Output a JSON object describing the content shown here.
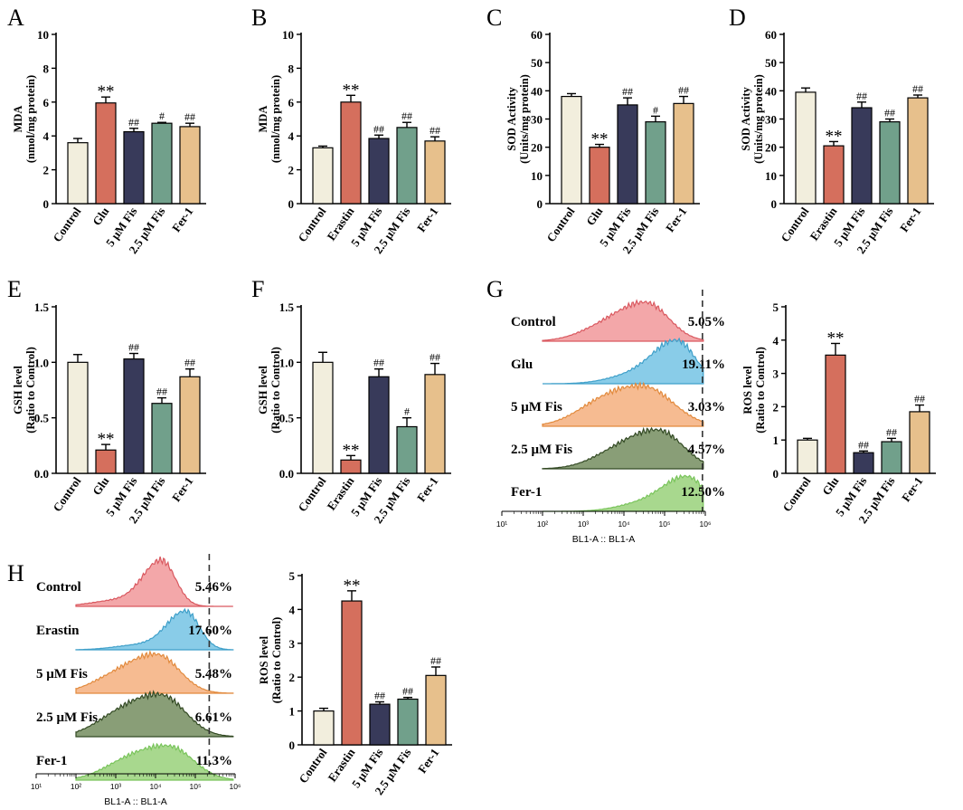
{
  "colors": {
    "bar": [
      "#f2eedd",
      "#d56f5d",
      "#383a5a",
      "#71a08b",
      "#e7c08c"
    ],
    "hist_fill": [
      "#f29da0",
      "#7cc6e5",
      "#f5b485",
      "#7c9368",
      "#9ed482"
    ],
    "hist_line": [
      "#d9585f",
      "#3e9fc9",
      "#e28a3d",
      "#334a24",
      "#79c45b"
    ],
    "label": [
      "#f08c8f",
      "#6fc2e3",
      "#f3ae7f",
      "#7f976d",
      "#92cf75"
    ]
  },
  "chart_data": [
    {
      "id": "A",
      "type": "bar",
      "panel_label": "A",
      "ylabel_line1": "MDA",
      "ylabel_line2": "(nmol/mg protein)",
      "ylim": [
        0,
        10
      ],
      "yticks": [
        "0",
        "2",
        "4",
        "6",
        "8",
        "10"
      ],
      "categories": [
        "Control",
        "Glu",
        "5 μM Fis",
        "2.5 μM Fis",
        "Fer-1"
      ],
      "values": [
        3.6,
        5.95,
        4.25,
        4.75,
        4.55
      ],
      "errors": [
        0.25,
        0.35,
        0.2,
        0.05,
        0.2
      ],
      "annotations": [
        "",
        "**",
        "##",
        "#",
        "##"
      ]
    },
    {
      "id": "B",
      "type": "bar",
      "panel_label": "B",
      "ylabel_line1": "MDA",
      "ylabel_line2": "(nmol/mg protein)",
      "ylim": [
        0,
        10
      ],
      "yticks": [
        "0",
        "2",
        "4",
        "6",
        "8",
        "10"
      ],
      "categories": [
        "Control",
        "Erastin",
        "5 μM Fis",
        "2.5 μM Fis",
        "Fer-1"
      ],
      "values": [
        3.3,
        6.0,
        3.85,
        4.5,
        3.7
      ],
      "errors": [
        0.1,
        0.4,
        0.2,
        0.3,
        0.25
      ],
      "annotations": [
        "",
        "**",
        "##",
        "##",
        "##"
      ]
    },
    {
      "id": "C",
      "type": "bar",
      "panel_label": "C",
      "ylabel_line1": "SOD Activity",
      "ylabel_line2": "(Units/mg protein)",
      "ylim": [
        0,
        60
      ],
      "yticks": [
        "0",
        "10",
        "20",
        "30",
        "40",
        "50",
        "60"
      ],
      "categories": [
        "Control",
        "Glu",
        "5 μM Fis",
        "2.5 μM Fis",
        "Fer-1"
      ],
      "values": [
        38,
        20,
        35,
        29,
        35.5
      ],
      "errors": [
        1,
        1,
        2.5,
        2,
        2.5
      ],
      "annotations": [
        "",
        "**",
        "##",
        "#",
        "##"
      ]
    },
    {
      "id": "D",
      "type": "bar",
      "panel_label": "D",
      "ylabel_line1": "SOD Activity",
      "ylabel_line2": "(Units/mg protein)",
      "ylim": [
        0,
        60
      ],
      "yticks": [
        "0",
        "10",
        "20",
        "30",
        "40",
        "50",
        "60"
      ],
      "categories": [
        "Control",
        "Erastin",
        "5 μM Fis",
        "2.5 μM Fis",
        "Fer-1"
      ],
      "values": [
        39.5,
        20.5,
        34,
        29,
        37.5
      ],
      "errors": [
        1.5,
        1.5,
        2,
        1,
        1
      ],
      "annotations": [
        "",
        "**",
        "##",
        "##",
        "##"
      ]
    },
    {
      "id": "E",
      "type": "bar",
      "panel_label": "E",
      "ylabel_line1": "GSH level",
      "ylabel_line2": "(Ratio to Control)",
      "ylim": [
        0,
        1.5
      ],
      "yticks": [
        "0.0",
        "0.5",
        "1.0",
        "1.5"
      ],
      "categories": [
        "Control",
        "Glu",
        "5 μM Fis",
        "2.5 μM Fis",
        "Fer-1"
      ],
      "values": [
        1.0,
        0.21,
        1.03,
        0.63,
        0.87
      ],
      "errors": [
        0.07,
        0.05,
        0.05,
        0.05,
        0.07
      ],
      "annotations": [
        "",
        "**",
        "##",
        "##",
        "##"
      ]
    },
    {
      "id": "F",
      "type": "bar",
      "panel_label": "F",
      "ylabel_line1": "GSH level",
      "ylabel_line2": "(Ratio to Control)",
      "ylim": [
        0,
        1.5
      ],
      "yticks": [
        "0.0",
        "0.5",
        "1.0",
        "1.5"
      ],
      "categories": [
        "Control",
        "Erastin",
        "5 μM Fis",
        "2.5 μM Fis",
        "Fer-1"
      ],
      "values": [
        1.0,
        0.12,
        0.87,
        0.42,
        0.89
      ],
      "errors": [
        0.09,
        0.04,
        0.07,
        0.08,
        0.1
      ],
      "annotations": [
        "",
        "**",
        "##",
        "#",
        "##"
      ]
    },
    {
      "id": "G2",
      "type": "bar",
      "panel_label": "",
      "ylabel_line1": "ROS level",
      "ylabel_line2": "(Ratio to Control)",
      "ylim": [
        0,
        5
      ],
      "yticks": [
        "0",
        "1",
        "2",
        "3",
        "4",
        "5"
      ],
      "categories": [
        "Control",
        "Glu",
        "5 μM Fis",
        "2.5 μM Fis",
        "Fer-1"
      ],
      "values": [
        1.0,
        3.55,
        0.62,
        0.95,
        1.85
      ],
      "errors": [
        0.05,
        0.35,
        0.05,
        0.1,
        0.2
      ],
      "annotations": [
        "",
        "**",
        "##",
        "##",
        "##"
      ]
    },
    {
      "id": "H2",
      "type": "bar",
      "panel_label": "",
      "ylabel_line1": "ROS level",
      "ylabel_line2": "(Ratio to Control)",
      "ylim": [
        0,
        5
      ],
      "yticks": [
        "0",
        "1",
        "2",
        "3",
        "4",
        "5"
      ],
      "categories": [
        "Control",
        "Erastin",
        "5 μM Fis",
        "2.5 μM Fis",
        "Fer-1"
      ],
      "values": [
        1.0,
        4.25,
        1.2,
        1.35,
        2.05
      ],
      "errors": [
        0.08,
        0.3,
        0.07,
        0.05,
        0.25
      ],
      "annotations": [
        "",
        "**",
        "##",
        "##",
        "##"
      ]
    },
    {
      "id": "G1",
      "type": "histogram",
      "panel_label": "G",
      "xlabel": "BL1-A :: BL1-A",
      "xticks": [
        "10¹",
        "10²",
        "10³",
        "10⁴",
        "10⁵",
        "10⁶"
      ],
      "xlog_range": [
        1,
        6
      ],
      "gate_log": 5.93,
      "tracks": [
        {
          "name": "Control",
          "percent": "5.05%",
          "peak_log": 4.55,
          "width": 0.55,
          "tail": 0.35
        },
        {
          "name": "Glu",
          "percent": "19.11%",
          "peak_log": 5.3,
          "width": 0.45,
          "tail": 0.25
        },
        {
          "name": "5 μM Fis",
          "percent": "3.03%",
          "peak_log": 4.5,
          "width": 0.7,
          "tail": 0.4
        },
        {
          "name": "2.5 μM Fis",
          "percent": "4.57%",
          "peak_log": 4.85,
          "width": 0.6,
          "tail": 0.35
        },
        {
          "name": "Fer-1",
          "percent": "12.50%",
          "peak_log": 5.55,
          "width": 0.45,
          "tail": 0.3
        }
      ]
    },
    {
      "id": "H1",
      "type": "histogram",
      "panel_label": "H",
      "xlabel": "BL1-A :: BL1-A",
      "xticks": [
        "10¹",
        "10²",
        "10³",
        "10⁴",
        "10⁵",
        "10⁶"
      ],
      "xlog_range": [
        1,
        6
      ],
      "gate_log": 5.35,
      "tracks": [
        {
          "name": "Control",
          "percent": "5.46%",
          "peak_log": 4.15,
          "width": 0.35,
          "tail": 0.2
        },
        {
          "name": "Erastin",
          "percent": "17.60%",
          "peak_log": 4.75,
          "width": 0.35,
          "tail": 0.2
        },
        {
          "name": "5 μM Fis",
          "percent": "5.48%",
          "peak_log": 4.05,
          "width": 0.55,
          "tail": 0.45
        },
        {
          "name": "2.5 μM Fis",
          "percent": "6.61%",
          "peak_log": 4.15,
          "width": 0.6,
          "tail": 0.5
        },
        {
          "name": "Fer-1",
          "percent": "11.3%",
          "peak_log": 4.35,
          "width": 0.6,
          "tail": 0.55
        }
      ]
    }
  ]
}
